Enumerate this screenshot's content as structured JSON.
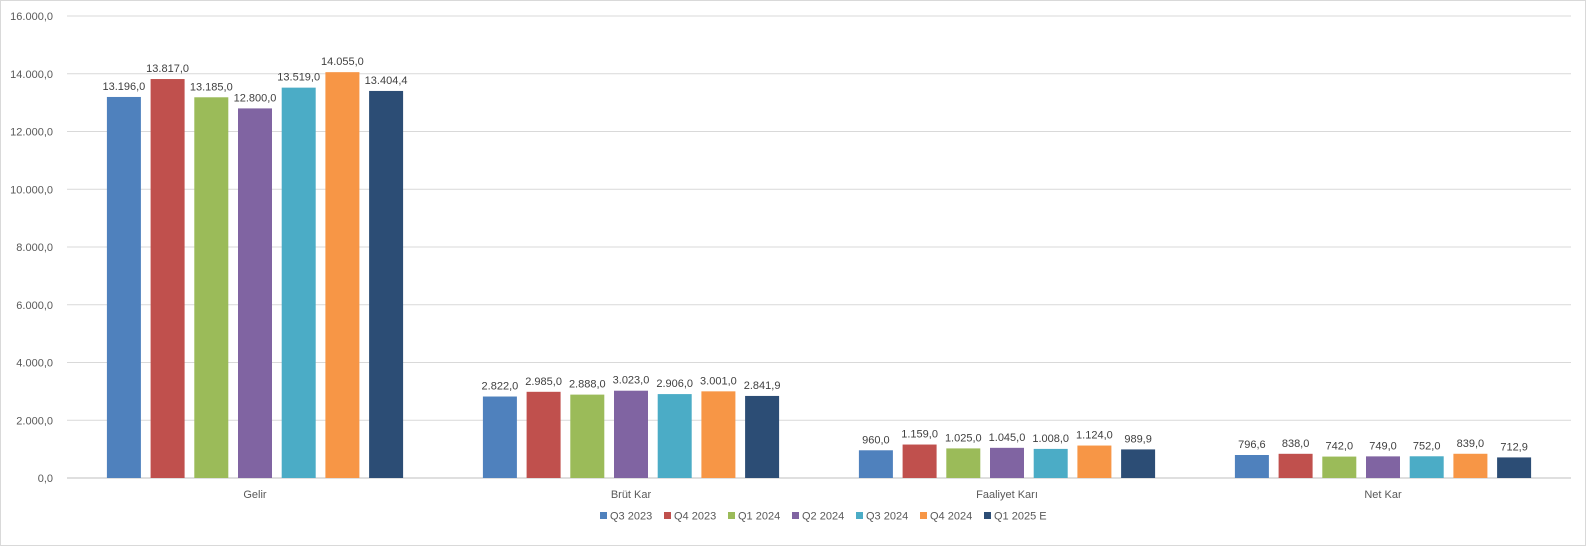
{
  "chart_data": {
    "type": "bar",
    "title": "",
    "xlabel": "",
    "ylabel": "",
    "ylim": [
      0,
      16000
    ],
    "y_tick_labels": [
      "0,0",
      "2.000,0",
      "4.000,0",
      "6.000,0",
      "8.000,0",
      "10.000,0",
      "12.000,0",
      "14.000,0",
      "16.000,0"
    ],
    "y_tick_values": [
      0,
      2000,
      4000,
      6000,
      8000,
      10000,
      12000,
      14000,
      16000
    ],
    "grid": true,
    "legend_position": "bottom",
    "categories": [
      "Gelir",
      "Brüt Kar",
      "Faaliyet Karı",
      "Net Kar"
    ],
    "series": [
      {
        "name": "Q3 2023",
        "color": "#4f81bd",
        "values": [
          13196.0,
          2822.0,
          960.0,
          796.6
        ],
        "labels": [
          "13.196,0",
          "2.822,0",
          "960,0",
          "796,6"
        ]
      },
      {
        "name": "Q4 2023",
        "color": "#c0504d",
        "values": [
          13817.0,
          2985.0,
          1159.0,
          838.0
        ],
        "labels": [
          "13.817,0",
          "2.985,0",
          "1.159,0",
          "838,0"
        ]
      },
      {
        "name": "Q1 2024",
        "color": "#9bbb59",
        "values": [
          13185.0,
          2888.0,
          1025.0,
          742.0
        ],
        "labels": [
          "13.185,0",
          "2.888,0",
          "1.025,0",
          "742,0"
        ]
      },
      {
        "name": "Q2 2024",
        "color": "#8064a2",
        "values": [
          12800.0,
          3023.0,
          1045.0,
          749.0
        ],
        "labels": [
          "12.800,0",
          "3.023,0",
          "1.045,0",
          "749,0"
        ]
      },
      {
        "name": "Q3 2024",
        "color": "#4bacc6",
        "values": [
          13519.0,
          2906.0,
          1008.0,
          752.0
        ],
        "labels": [
          "13.519,0",
          "2.906,0",
          "1.008,0",
          "752,0"
        ]
      },
      {
        "name": "Q4 2024",
        "color": "#f79646",
        "values": [
          14055.0,
          3001.0,
          1124.0,
          839.0
        ],
        "labels": [
          "14.055,0",
          "3.001,0",
          "1.124,0",
          "839,0"
        ]
      },
      {
        "name": "Q1 2025 E",
        "color": "#2c4d75",
        "values": [
          13404.4,
          2841.9,
          989.9,
          712.9
        ],
        "labels": [
          "13.404,4",
          "2.841,9",
          "989,9",
          "712,9"
        ]
      }
    ],
    "gridline_color": "#d9d9d9",
    "axis_color": "#bfbfbf"
  }
}
